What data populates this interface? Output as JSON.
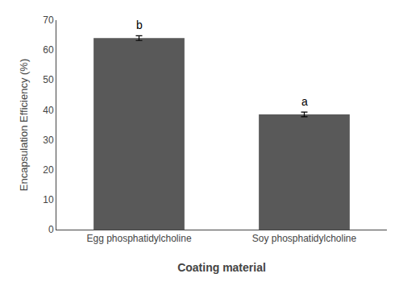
{
  "chart_data": {
    "type": "bar",
    "categories": [
      "Egg phosphatidylcholine",
      "Soy phosphatidylcholine"
    ],
    "values": [
      64.0,
      38.5
    ],
    "errors": [
      0.8,
      0.8
    ],
    "annotations": [
      {
        "category": "Egg phosphatidylcholine",
        "text": "b"
      },
      {
        "category": "Soy phosphatidylcholine",
        "text": "a"
      }
    ],
    "color": "#595959",
    "xlabel": "Coating material",
    "ylabel": "Encapsulation Efficiency (%)",
    "ylim": [
      0,
      70
    ],
    "yticks": [
      0,
      10,
      20,
      30,
      40,
      50,
      60,
      70
    ],
    "grid": false
  }
}
